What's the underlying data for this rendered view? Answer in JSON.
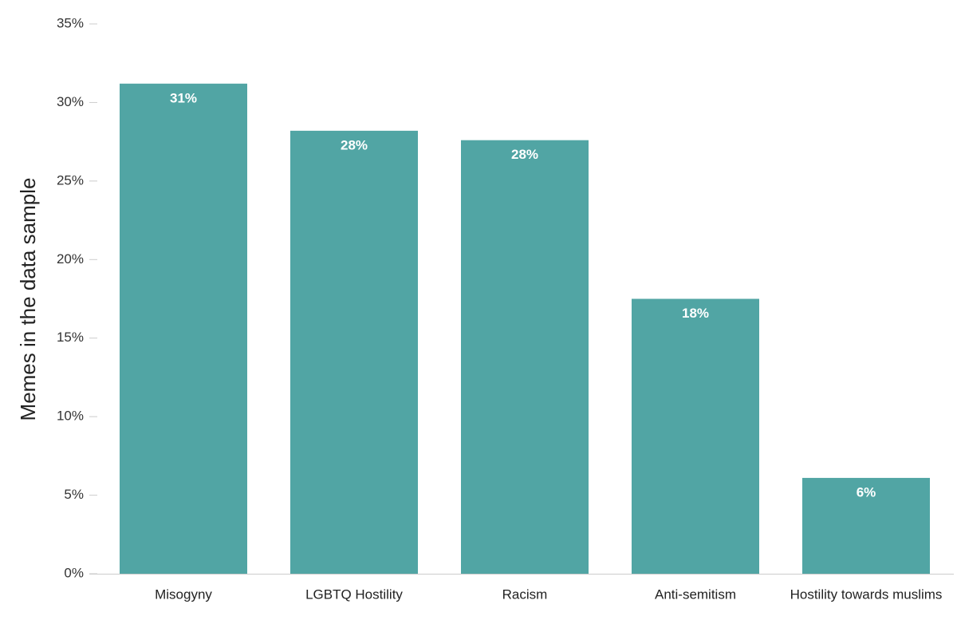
{
  "chart_data": {
    "type": "bar",
    "title": "",
    "xlabel": "",
    "ylabel": "Memes in the data sample",
    "categories": [
      "Misogyny",
      "LGBTQ Hostility",
      "Racism",
      "Anti-semitism",
      "Hostility towards muslims"
    ],
    "values": [
      31.2,
      28.2,
      27.6,
      17.5,
      6.1
    ],
    "data_labels": [
      "31%",
      "28%",
      "28%",
      "18%",
      "6%"
    ],
    "ylim": [
      0,
      35
    ],
    "yticks": [
      0,
      5,
      10,
      15,
      20,
      25,
      30,
      35
    ],
    "ytick_labels": [
      "0%",
      "5%",
      "10%",
      "15%",
      "20%",
      "25%",
      "30%",
      "35%"
    ],
    "grid": false,
    "legend": "none",
    "colors": {
      "bar": "#51a5a4",
      "axis": "#cccccc",
      "text": "#222222"
    }
  }
}
